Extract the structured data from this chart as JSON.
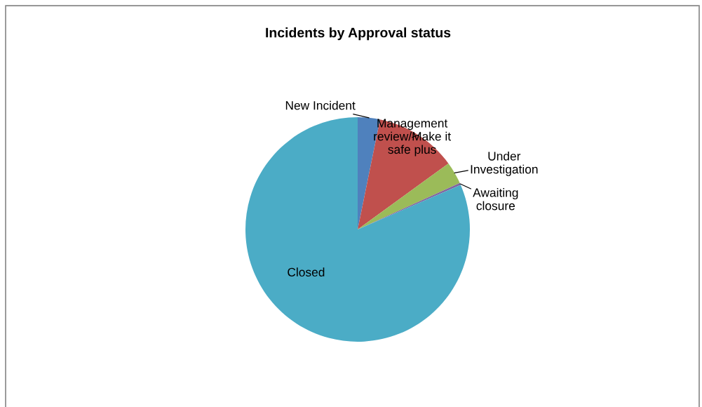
{
  "chart_data": {
    "type": "pie",
    "title": "Incidents by Approval status",
    "categories": [
      "New Incident",
      "Management review/Make it safe plus",
      "Under Investigation",
      "Awaiting closure",
      "Closed"
    ],
    "values": [
      3.2,
      11.8,
      3.2,
      0.3,
      81.5
    ],
    "colors": [
      "#4f81bd",
      "#c0504d",
      "#9bbb59",
      "#8064a2",
      "#4bacc6"
    ],
    "legend": false
  }
}
